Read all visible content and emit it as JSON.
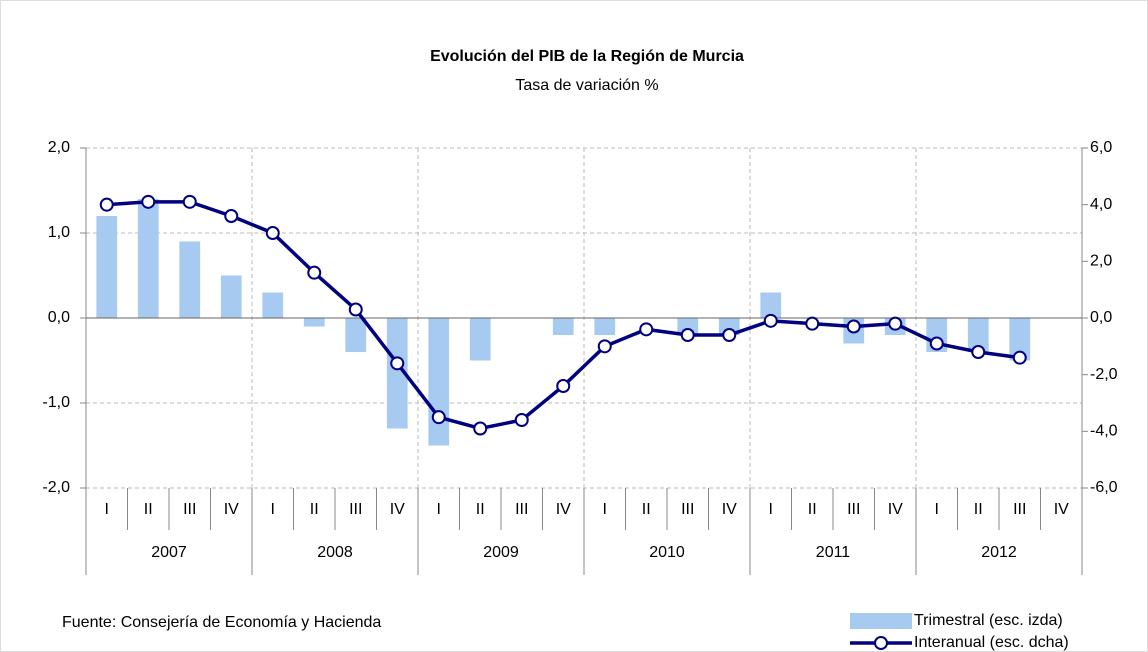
{
  "chart_data": {
    "type": "combo",
    "title": "Evolución del PIB de la Región de Murcia",
    "subtitle": "Tasa de variación %",
    "categories": [
      "I",
      "II",
      "III",
      "IV",
      "I",
      "II",
      "III",
      "IV",
      "I",
      "II",
      "III",
      "IV",
      "I",
      "II",
      "III",
      "IV",
      "I",
      "II",
      "III",
      "IV",
      "I",
      "II",
      "III",
      "IV"
    ],
    "years": [
      "2007",
      "2008",
      "2009",
      "2010",
      "2011",
      "2012"
    ],
    "series": [
      {
        "name": "Trimestral (esc. izda)",
        "type": "bar",
        "axis": "y",
        "color": "#a6caf0",
        "values": [
          1.2,
          1.4,
          0.9,
          0.5,
          0.3,
          -0.1,
          -0.4,
          -1.3,
          -1.5,
          -0.5,
          0.0,
          -0.2,
          -0.2,
          0.0,
          -0.2,
          -0.2,
          0.3,
          0.0,
          -0.3,
          -0.2,
          -0.4,
          -0.4,
          -0.5,
          null
        ]
      },
      {
        "name": "Interanual (esc. dcha)",
        "type": "line",
        "axis": "y2",
        "color": "#000080",
        "values": [
          4.0,
          4.1,
          4.1,
          3.6,
          3.0,
          1.6,
          0.3,
          -1.6,
          -3.5,
          -3.9,
          -3.6,
          -2.4,
          -1.0,
          -0.4,
          -0.6,
          -0.6,
          -0.1,
          -0.2,
          -0.3,
          -0.2,
          -0.9,
          -1.2,
          -1.4,
          null
        ]
      }
    ],
    "ylim": [
      -2,
      2
    ],
    "yticks": [
      {
        "value": -2,
        "label": "-2,0"
      },
      {
        "value": -1,
        "label": "-1,0"
      },
      {
        "value": 0,
        "label": "0,0"
      },
      {
        "value": 1,
        "label": "1,0"
      },
      {
        "value": 2,
        "label": "2,0"
      }
    ],
    "y2lim": [
      -6,
      6
    ],
    "y2ticks": [
      {
        "value": -6,
        "label": "-6,0"
      },
      {
        "value": -4,
        "label": "-4,0"
      },
      {
        "value": -2,
        "label": "-2,0"
      },
      {
        "value": 0,
        "label": "0,0"
      },
      {
        "value": 2,
        "label": "2,0"
      },
      {
        "value": 4,
        "label": "4,0"
      },
      {
        "value": 6,
        "label": "6,0"
      }
    ],
    "grid": true,
    "legend": "bottom-right",
    "source": "Fuente:  Consejería de Economía y Hacienda"
  }
}
